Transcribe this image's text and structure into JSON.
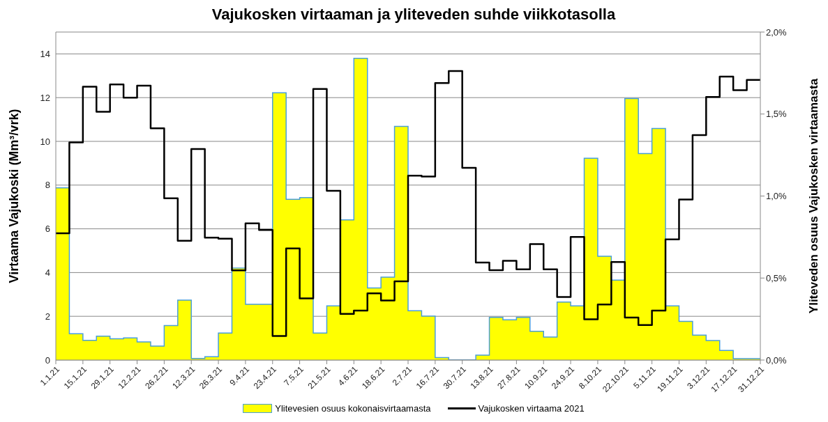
{
  "chart_data": {
    "type": "step",
    "title": "Vajukosken virtaaman ja yliteveden suhde viikkotasolla",
    "ylabel": "Virtaama Vajukoski (Mm³/vrk)",
    "y2label": "Yliteveden osuus Vajukosken virtaamasta",
    "x": [
      "2021-01-01",
      "2021-01-08",
      "2021-01-15",
      "2021-01-22",
      "2021-01-29",
      "2021-02-05",
      "2021-02-12",
      "2021-02-19",
      "2021-02-26",
      "2021-03-05",
      "2021-03-12",
      "2021-03-19",
      "2021-03-26",
      "2021-04-02",
      "2021-04-09",
      "2021-04-16",
      "2021-04-23",
      "2021-04-30",
      "2021-05-07",
      "2021-05-14",
      "2021-05-21",
      "2021-05-28",
      "2021-06-04",
      "2021-06-11",
      "2021-06-18",
      "2021-06-25",
      "2021-07-02",
      "2021-07-09",
      "2021-07-16",
      "2021-07-23",
      "2021-07-30",
      "2021-08-06",
      "2021-08-13",
      "2021-08-20",
      "2021-08-27",
      "2021-09-03",
      "2021-09-10",
      "2021-09-17",
      "2021-09-24",
      "2021-10-01",
      "2021-10-08",
      "2021-10-15",
      "2021-10-22",
      "2021-10-29",
      "2021-11-05",
      "2021-11-12",
      "2021-11-19",
      "2021-11-26",
      "2021-12-03",
      "2021-12-10",
      "2021-12-17",
      "2021-12-24",
      "2021-12-31"
    ],
    "xlim": [
      "2021-01-01",
      "2021-12-31"
    ],
    "xticks": [
      {
        "value": "2021-01-01",
        "label": "1.1.21"
      },
      {
        "value": "2021-01-15",
        "label": "15.1.21"
      },
      {
        "value": "2021-01-29",
        "label": "29.1.21"
      },
      {
        "value": "2021-02-12",
        "label": "12.2.21"
      },
      {
        "value": "2021-02-26",
        "label": "26.2.21"
      },
      {
        "value": "2021-03-12",
        "label": "12.3.21"
      },
      {
        "value": "2021-03-26",
        "label": "26.3.21"
      },
      {
        "value": "2021-04-09",
        "label": "9.4.21"
      },
      {
        "value": "2021-04-23",
        "label": "23.4.21"
      },
      {
        "value": "2021-05-07",
        "label": "7.5.21"
      },
      {
        "value": "2021-05-21",
        "label": "21.5.21"
      },
      {
        "value": "2021-06-04",
        "label": "4.6.21"
      },
      {
        "value": "2021-06-18",
        "label": "18.6.21"
      },
      {
        "value": "2021-07-02",
        "label": "2.7.21"
      },
      {
        "value": "2021-07-16",
        "label": "16.7.21"
      },
      {
        "value": "2021-07-30",
        "label": "30.7.21"
      },
      {
        "value": "2021-08-13",
        "label": "13.8.21"
      },
      {
        "value": "2021-08-27",
        "label": "27.8.21"
      },
      {
        "value": "2021-09-10",
        "label": "10.9.21"
      },
      {
        "value": "2021-09-24",
        "label": "24.9.21"
      },
      {
        "value": "2021-10-08",
        "label": "8.10.21"
      },
      {
        "value": "2021-10-22",
        "label": "22.10.21"
      },
      {
        "value": "2021-11-05",
        "label": "5.11.21"
      },
      {
        "value": "2021-11-19",
        "label": "19.11.21"
      },
      {
        "value": "2021-12-03",
        "label": "3.12.21"
      },
      {
        "value": "2021-12-17",
        "label": "17.12.21"
      },
      {
        "value": "2021-12-31",
        "label": "31.12.21"
      }
    ],
    "ylim": [
      0,
      15
    ],
    "yticks": [
      0,
      2,
      4,
      6,
      8,
      10,
      12,
      14
    ],
    "y2lim": [
      0,
      2
    ],
    "y2ticks": [
      {
        "value": 0,
        "label": "0,0%"
      },
      {
        "value": 0.5,
        "label": "0,5%"
      },
      {
        "value": 1,
        "label": "1,0%"
      },
      {
        "value": 1.5,
        "label": "1,5%"
      },
      {
        "value": 2,
        "label": "2,0%"
      }
    ],
    "grid": "y",
    "legend": "bottom",
    "series": [
      {
        "name": "Ylitevesien osuus kokonaisvirtaamasta",
        "type": "area",
        "axis": "y2",
        "color": "#ffff00",
        "values": [
          1.05,
          0.16,
          0.12,
          0.145,
          0.13,
          0.135,
          0.11,
          0.085,
          0.21,
          0.365,
          0.01,
          0.02,
          0.165,
          0.56,
          0.34,
          0.34,
          1.63,
          0.98,
          0.99,
          0.165,
          0.33,
          0.855,
          1.84,
          0.44,
          0.505,
          1.425,
          0.3,
          0.267,
          0.015,
          0,
          0,
          0.03,
          0.26,
          0.245,
          0.26,
          0.175,
          0.14,
          0.353,
          0.33,
          1.23,
          0.633,
          0.487,
          1.594,
          1.259,
          1.412,
          0.33,
          0.236,
          0.152,
          0.119,
          0.058,
          0.008,
          0.008,
          0.008
        ]
      },
      {
        "name": "Vajukosken virtaama 2021",
        "axis": "y",
        "color": "#000000",
        "values": [
          5.8,
          9.95,
          12.5,
          11.35,
          12.6,
          12.0,
          12.55,
          10.6,
          7.4,
          5.45,
          9.65,
          5.6,
          5.55,
          4.1,
          6.25,
          5.95,
          1.1,
          5.1,
          2.82,
          12.4,
          7.74,
          2.11,
          2.26,
          3.05,
          2.72,
          3.6,
          8.43,
          8.39,
          12.67,
          13.22,
          8.79,
          4.46,
          4.11,
          4.54,
          4.15,
          5.3,
          4.15,
          2.88,
          5.63,
          1.86,
          2.54,
          4.48,
          1.94,
          1.6,
          2.26,
          5.52,
          7.34,
          10.29,
          12.03,
          12.96,
          12.34,
          12.81,
          12.81
        ]
      }
    ]
  }
}
